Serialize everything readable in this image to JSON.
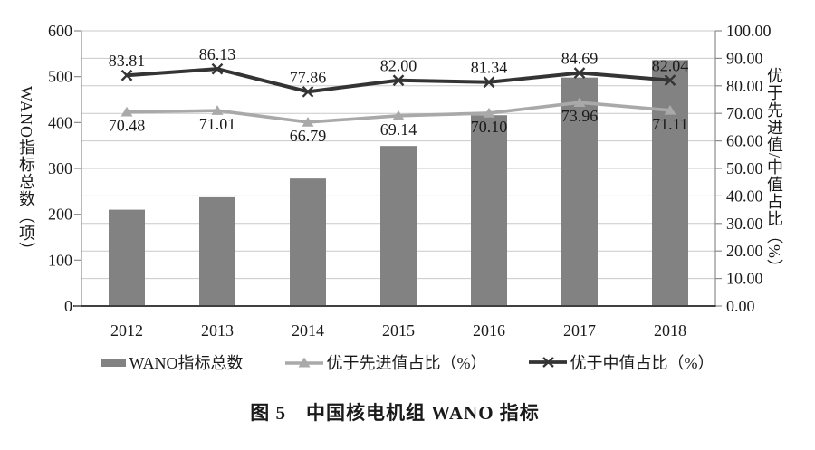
{
  "chart_data": {
    "type": "combo_bar_line",
    "title": "图 5　中国核电机组 WANO 指标",
    "categories": [
      "2012",
      "2013",
      "2014",
      "2015",
      "2016",
      "2017",
      "2018"
    ],
    "series": [
      {
        "name": "WANO指标总数",
        "type": "bar",
        "axis": "left",
        "color": "#828282",
        "values": [
          210,
          237,
          278,
          349,
          416,
          498,
          536
        ],
        "data_labels": false
      },
      {
        "name": "优于先进值占比（%）",
        "type": "line",
        "marker": "triangle",
        "axis": "right",
        "color": "#a9a9a9",
        "values": [
          70.48,
          71.01,
          66.79,
          69.14,
          70.1,
          73.96,
          71.11
        ],
        "data_labels": true,
        "label_position": "below"
      },
      {
        "name": "优于中值占比（%）",
        "type": "line",
        "marker": "x",
        "axis": "right",
        "color": "#343434",
        "values": [
          83.81,
          86.13,
          77.86,
          82.0,
          81.34,
          84.69,
          82.04
        ],
        "data_labels": true,
        "label_position": "above"
      }
    ],
    "left_axis": {
      "title": "WANO指标总数（项）",
      "min": 0,
      "max": 600,
      "ticks": [
        "600",
        "500",
        "400",
        "300",
        "200",
        "100",
        "0"
      ]
    },
    "right_axis": {
      "title": "优于先进值/中值占比（%）",
      "min": 0,
      "max": 100,
      "ticks": [
        "100.00",
        "90.00",
        "80.00",
        "70.00",
        "60.00",
        "50.00",
        "40.00",
        "30.00",
        "20.00",
        "10.00",
        "0.00"
      ]
    },
    "grid": "horizontal gridlines every 10 right-axis units",
    "legend_position": "bottom",
    "colors": {
      "grid": "#c9c9c9",
      "axis": "#8c8c8c",
      "baseline": "#404040",
      "text": "#1a1a1a"
    }
  }
}
